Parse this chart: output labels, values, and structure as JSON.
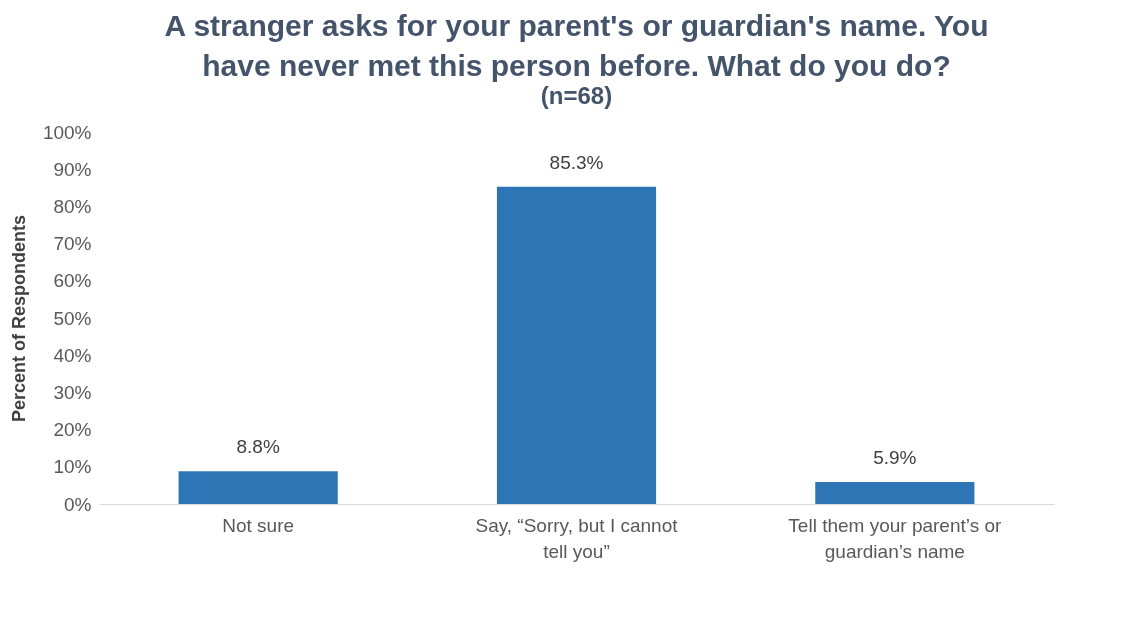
{
  "chart_data": {
    "type": "bar",
    "title": "A stranger asks for your parent's or guardian's name. You have never met this person before. What do you do?",
    "subtitle": "(n=68)",
    "ylabel": "Percent of Respondents",
    "categories": [
      "Not sure",
      "Say, “Sorry, but I cannot tell you”",
      "Tell them your parent’s or guardian’s name"
    ],
    "values": [
      8.8,
      85.3,
      5.9
    ],
    "value_labels": [
      "8.8%",
      "85.3%",
      "5.9%"
    ],
    "color": "#2e75b6",
    "ylim": [
      0,
      100
    ],
    "yticks": [
      {
        "value": 0,
        "label": "0%"
      },
      {
        "value": 10,
        "label": "10%"
      },
      {
        "value": 20,
        "label": "20%"
      },
      {
        "value": 30,
        "label": "30%"
      },
      {
        "value": 40,
        "label": "40%"
      },
      {
        "value": 50,
        "label": "50%"
      },
      {
        "value": 60,
        "label": "60%"
      },
      {
        "value": 70,
        "label": "70%"
      },
      {
        "value": 80,
        "label": "80%"
      },
      {
        "value": 90,
        "label": "90%"
      },
      {
        "value": 100,
        "label": "100%"
      }
    ],
    "grid": false
  }
}
